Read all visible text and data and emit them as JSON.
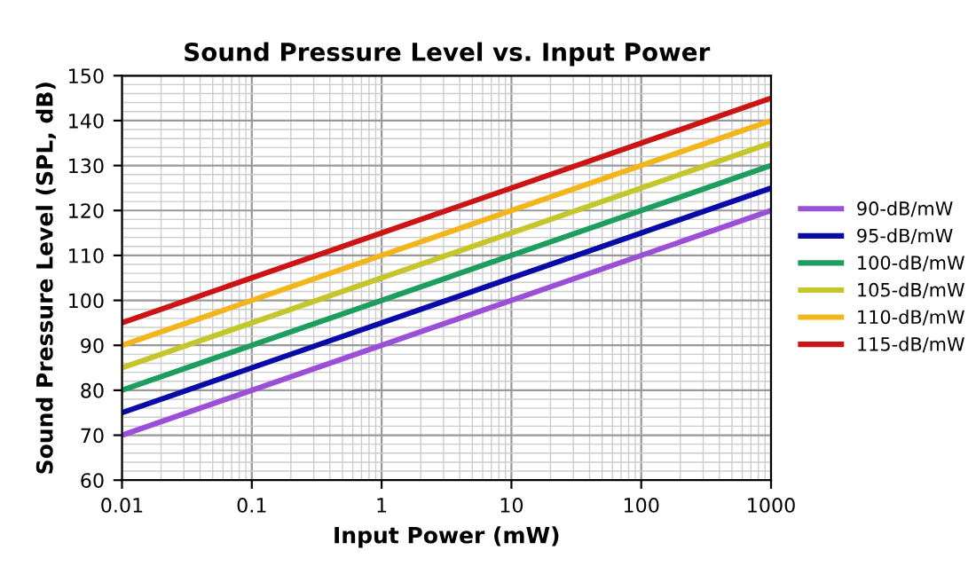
{
  "chart_data": {
    "type": "line",
    "title": "Sound Pressure Level vs. Input Power",
    "xlabel": "Input Power (mW)",
    "ylabel": "Sound Pressure Level (SPL, dB)",
    "x": [
      0.01,
      1000
    ],
    "log": "x",
    "xlim": [
      0.01,
      1000
    ],
    "xticks": [
      0.01,
      0.1,
      1,
      10,
      100,
      1000
    ],
    "ylim": [
      60,
      150
    ],
    "yticks": [
      60,
      70,
      80,
      90,
      100,
      110,
      120,
      130,
      140,
      150
    ],
    "grid": true,
    "legend": "right",
    "marker": "none",
    "line_style": "solid",
    "series": [
      {
        "name": "90-dB/mW",
        "color": "#9b4fd6",
        "values": [
          70,
          120
        ]
      },
      {
        "name": "95-dB/mW",
        "color": "#0a0aa8",
        "values": [
          75,
          125
        ]
      },
      {
        "name": "100-dB/mW",
        "color": "#1e9e5e",
        "values": [
          80,
          130
        ]
      },
      {
        "name": "105-dB/mW",
        "color": "#c4c62a",
        "values": [
          85,
          135
        ]
      },
      {
        "name": "110-dB/mW",
        "color": "#f2b51c",
        "values": [
          90,
          140
        ]
      },
      {
        "name": "115-dB/mW",
        "color": "#cc1414",
        "values": [
          95,
          145
        ]
      }
    ]
  }
}
